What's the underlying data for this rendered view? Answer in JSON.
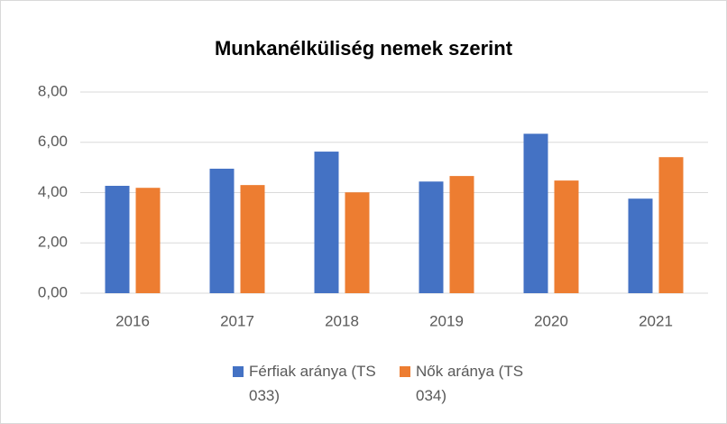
{
  "chart_data": {
    "type": "bar",
    "title": "Munkanélküliség nemek szerint",
    "categories": [
      "2016",
      "2017",
      "2018",
      "2019",
      "2020",
      "2021"
    ],
    "series": [
      {
        "name": "Férfiak aránya (TS 033)",
        "color": "#4472c4",
        "values": [
          4.27,
          4.95,
          5.63,
          4.44,
          6.34,
          3.76
        ]
      },
      {
        "name": "Nők aránya (TS 034)",
        "color": "#ed7d31",
        "values": [
          4.19,
          4.3,
          4.01,
          4.66,
          4.48,
          5.41
        ]
      }
    ],
    "ylim": [
      0,
      8
    ],
    "yticks": [
      {
        "value": 0,
        "label": "0,00"
      },
      {
        "value": 2,
        "label": "2,00"
      },
      {
        "value": 4,
        "label": "4,00"
      },
      {
        "value": 6,
        "label": "6,00"
      },
      {
        "value": 8,
        "label": "8,00"
      }
    ],
    "grid": true,
    "legend": "bottom"
  }
}
